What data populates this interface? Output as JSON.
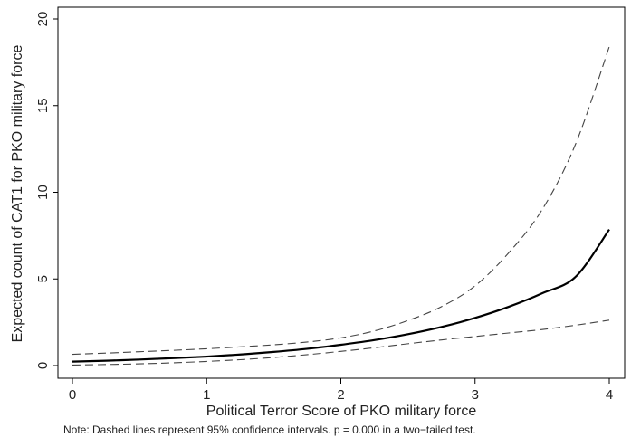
{
  "chart_data": {
    "type": "line",
    "title": "",
    "xlabel": "Political Terror Score of PKO military force",
    "ylabel": "Expected count of CAT1 for PKO military force",
    "xlim": [
      0,
      4
    ],
    "ylim": [
      0,
      20
    ],
    "x_ticks": [
      0,
      1,
      2,
      3,
      4
    ],
    "y_ticks": [
      0,
      5,
      10,
      15,
      20
    ],
    "grid": false,
    "legend": "none",
    "x": [
      0,
      0.25,
      0.5,
      0.75,
      1,
      1.25,
      1.5,
      1.75,
      2,
      2.25,
      2.5,
      2.75,
      3,
      3.25,
      3.5,
      3.75,
      4
    ],
    "series": [
      {
        "style": "solid",
        "color": "#000000",
        "values": [
          0.23,
          0.28,
          0.35,
          0.43,
          0.52,
          0.64,
          0.79,
          0.97,
          1.2,
          1.47,
          1.81,
          2.23,
          2.75,
          3.39,
          4.17,
          5.13,
          7.85
        ]
      },
      {
        "style": "dashed",
        "color": "#444444",
        "values": [
          0.65,
          0.72,
          0.8,
          0.88,
          0.97,
          1.08,
          1.2,
          1.36,
          1.6,
          2.0,
          2.6,
          3.4,
          4.6,
          6.5,
          9.0,
          12.8,
          18.4
        ]
      },
      {
        "style": "dashed",
        "color": "#444444",
        "values": [
          0.03,
          0.06,
          0.1,
          0.16,
          0.24,
          0.34,
          0.47,
          0.63,
          0.82,
          1.03,
          1.26,
          1.48,
          1.68,
          1.88,
          2.08,
          2.33,
          2.62
        ]
      }
    ]
  },
  "note": "Note: Dashed lines represent 95% confidence intervals. p = 0.000 in a two−tailed test."
}
